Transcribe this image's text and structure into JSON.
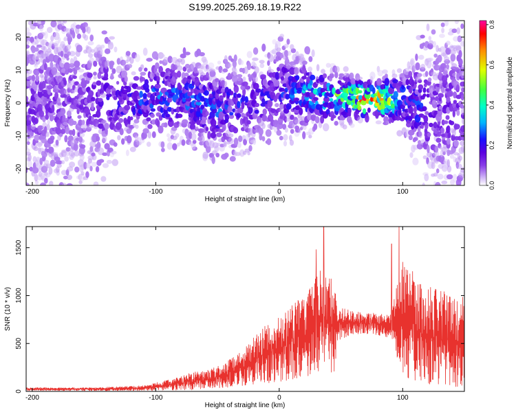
{
  "figure_title": "S199.2025.269.18.19.R22",
  "colors": {
    "snr_line": "#e8322e",
    "axes": "#000000",
    "background": "#ffffff"
  },
  "chart_data": [
    {
      "type": "heatmap",
      "title": "S199.2025.269.18.19.R22",
      "xlabel": "Height of straight line (km)",
      "ylabel": "Frequency (Hz)",
      "xlim": [
        -205,
        150
      ],
      "ylim": [
        -25,
        25
      ],
      "x_ticks": [
        -200,
        -100,
        0,
        100
      ],
      "y_ticks": [
        -20,
        -10,
        0,
        10,
        20
      ],
      "colorbar": {
        "label": "Normalized spectral amplitude",
        "range": [
          0.0,
          0.82
        ],
        "ticks": [
          "0.0",
          "0.2",
          "0.4",
          "0.6",
          "0.8"
        ],
        "colormap": [
          "#ffffff",
          "#d8c2f8",
          "#8a3fe8",
          "#5a00e0",
          "#1a10ff",
          "#00b4ff",
          "#00ffc8",
          "#40ff40",
          "#e0ff00",
          "#ff8c00",
          "#ff0000",
          "#ff00a0"
        ]
      },
      "energy_profile": [
        {
          "x": -205,
          "center_hz": 0,
          "halfwidth_hz": 25,
          "density": 0.55,
          "amp": 0.12
        },
        {
          "x": -160,
          "center_hz": 0,
          "halfwidth_hz": 25,
          "density": 0.45,
          "amp": 0.11
        },
        {
          "x": -140,
          "center_hz": 1,
          "halfwidth_hz": 18,
          "density": 0.3,
          "amp": 0.18
        },
        {
          "x": -120,
          "center_hz": 1,
          "halfwidth_hz": 12,
          "density": 0.4,
          "amp": 0.22
        },
        {
          "x": -80,
          "center_hz": 2,
          "halfwidth_hz": 12,
          "density": 0.55,
          "amp": 0.26
        },
        {
          "x": -50,
          "center_hz": -2,
          "halfwidth_hz": 14,
          "density": 0.55,
          "amp": 0.24
        },
        {
          "x": -20,
          "center_hz": 0,
          "halfwidth_hz": 12,
          "density": 0.45,
          "amp": 0.18
        },
        {
          "x": 0,
          "center_hz": 4,
          "halfwidth_hz": 14,
          "density": 0.5,
          "amp": 0.2
        },
        {
          "x": 40,
          "center_hz": 2,
          "halfwidth_hz": 8,
          "density": 0.6,
          "amp": 0.38
        },
        {
          "x": 75,
          "center_hz": 1,
          "halfwidth_hz": 6,
          "density": 0.65,
          "amp": 0.7
        },
        {
          "x": 100,
          "center_hz": 1,
          "halfwidth_hz": 9,
          "density": 0.55,
          "amp": 0.3
        },
        {
          "x": 125,
          "center_hz": -3,
          "halfwidth_hz": 22,
          "density": 0.4,
          "amp": 0.14
        },
        {
          "x": 150,
          "center_hz": 0,
          "halfwidth_hz": 25,
          "density": 0.45,
          "amp": 0.14
        }
      ]
    },
    {
      "type": "line",
      "title": "",
      "xlabel": "Height of straight line (km)",
      "ylabel": "SNR (10 * v/v)",
      "xlim": [
        -205,
        150
      ],
      "ylim": [
        0,
        1720
      ],
      "x_ticks": [
        -200,
        -100,
        0,
        100
      ],
      "y_ticks": [
        0,
        500,
        1000,
        1500
      ],
      "series": [
        {
          "name": "SNR",
          "color": "#e8322e",
          "envelope_x": [
            -205,
            -150,
            -110,
            -90,
            -70,
            -50,
            -30,
            -15,
            0,
            20,
            35,
            45,
            47,
            60,
            75,
            90,
            100,
            115,
            130,
            150
          ],
          "envelope_min": [
            8,
            8,
            8,
            10,
            15,
            30,
            60,
            80,
            100,
            150,
            200,
            200,
            530,
            600,
            600,
            560,
            150,
            100,
            50,
            50
          ],
          "envelope_max": [
            40,
            40,
            60,
            120,
            200,
            260,
            420,
            650,
            800,
            1000,
            1300,
            1150,
            880,
            840,
            820,
            800,
            1400,
            1150,
            1050,
            1000
          ],
          "peaks": [
            {
              "x": 36,
              "y": 1720
            },
            {
              "x": 97,
              "y": 1720
            },
            {
              "x": 91,
              "y": 1540
            },
            {
              "x": 30,
              "y": 1480
            }
          ]
        }
      ]
    }
  ]
}
